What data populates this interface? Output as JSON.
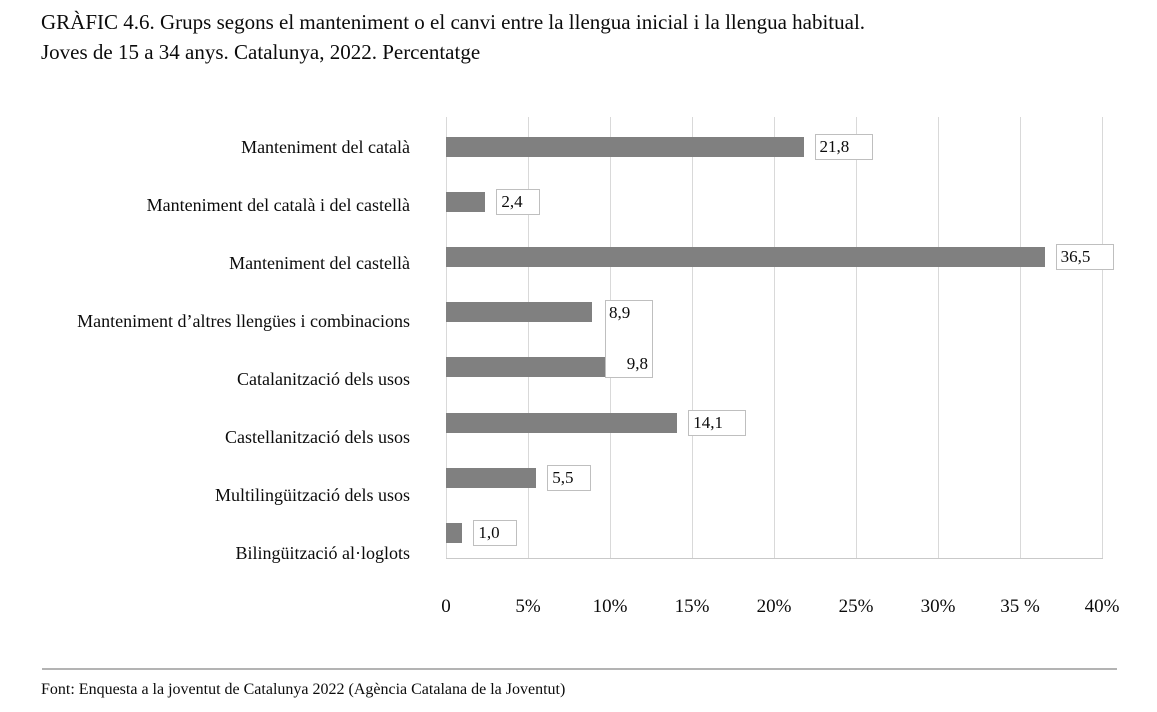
{
  "page": {
    "title_line1": "GRÀFIC 4.6. Grups segons el manteniment o el canvi entre la llengua inicial i la llengua habitual.",
    "title_line2": "Joves de 15 a 34 anys. Catalunya, 2022. Percentatge",
    "footer_source": "Font: Enquesta a la joventut de Catalunya 2022 (Agència Catalana de la Joventut)"
  },
  "chart_data": {
    "type": "bar",
    "orientation": "horizontal",
    "title": "GRÀFIC 4.6. Grups segons el manteniment o el canvi entre la llengua inicial i la llengua habitual. Joves de 15 a 34 anys. Catalunya, 2022. Percentatge",
    "categories": [
      "Manteniment del català",
      "Manteniment del català i del castellà",
      "Manteniment del castellà",
      "Manteniment d’altres llengües i combinacions",
      "Catalanització dels usos",
      "Castellanització dels usos",
      "Multilingüització dels usos",
      "Bilingüització al·loglots"
    ],
    "values": [
      21.8,
      2.4,
      36.5,
      8.9,
      9.8,
      14.1,
      5.5,
      1.0
    ],
    "value_labels": [
      "21,8",
      "2,4",
      "36,5",
      "8,9",
      "9,8",
      "14,1",
      "5,5",
      "1,0"
    ],
    "x_tick_labels": [
      "0",
      "5%",
      "10%",
      "15%",
      "20%",
      "25%",
      "30%",
      "35 %",
      "40%"
    ],
    "xlim": [
      0,
      40
    ],
    "x_major_step": 5,
    "unit": "percent",
    "grid": "vertical-only",
    "legend": "none",
    "bar_color": "#808080",
    "gridline_color": "#d9d9d9",
    "axis_line_color": "#c9c9c9",
    "label_box_border_color": "#bfbfbf",
    "source": "Font: Enquesta a la joventut de Catalunya 2022 (Agència Catalana de la Joventut)"
  }
}
